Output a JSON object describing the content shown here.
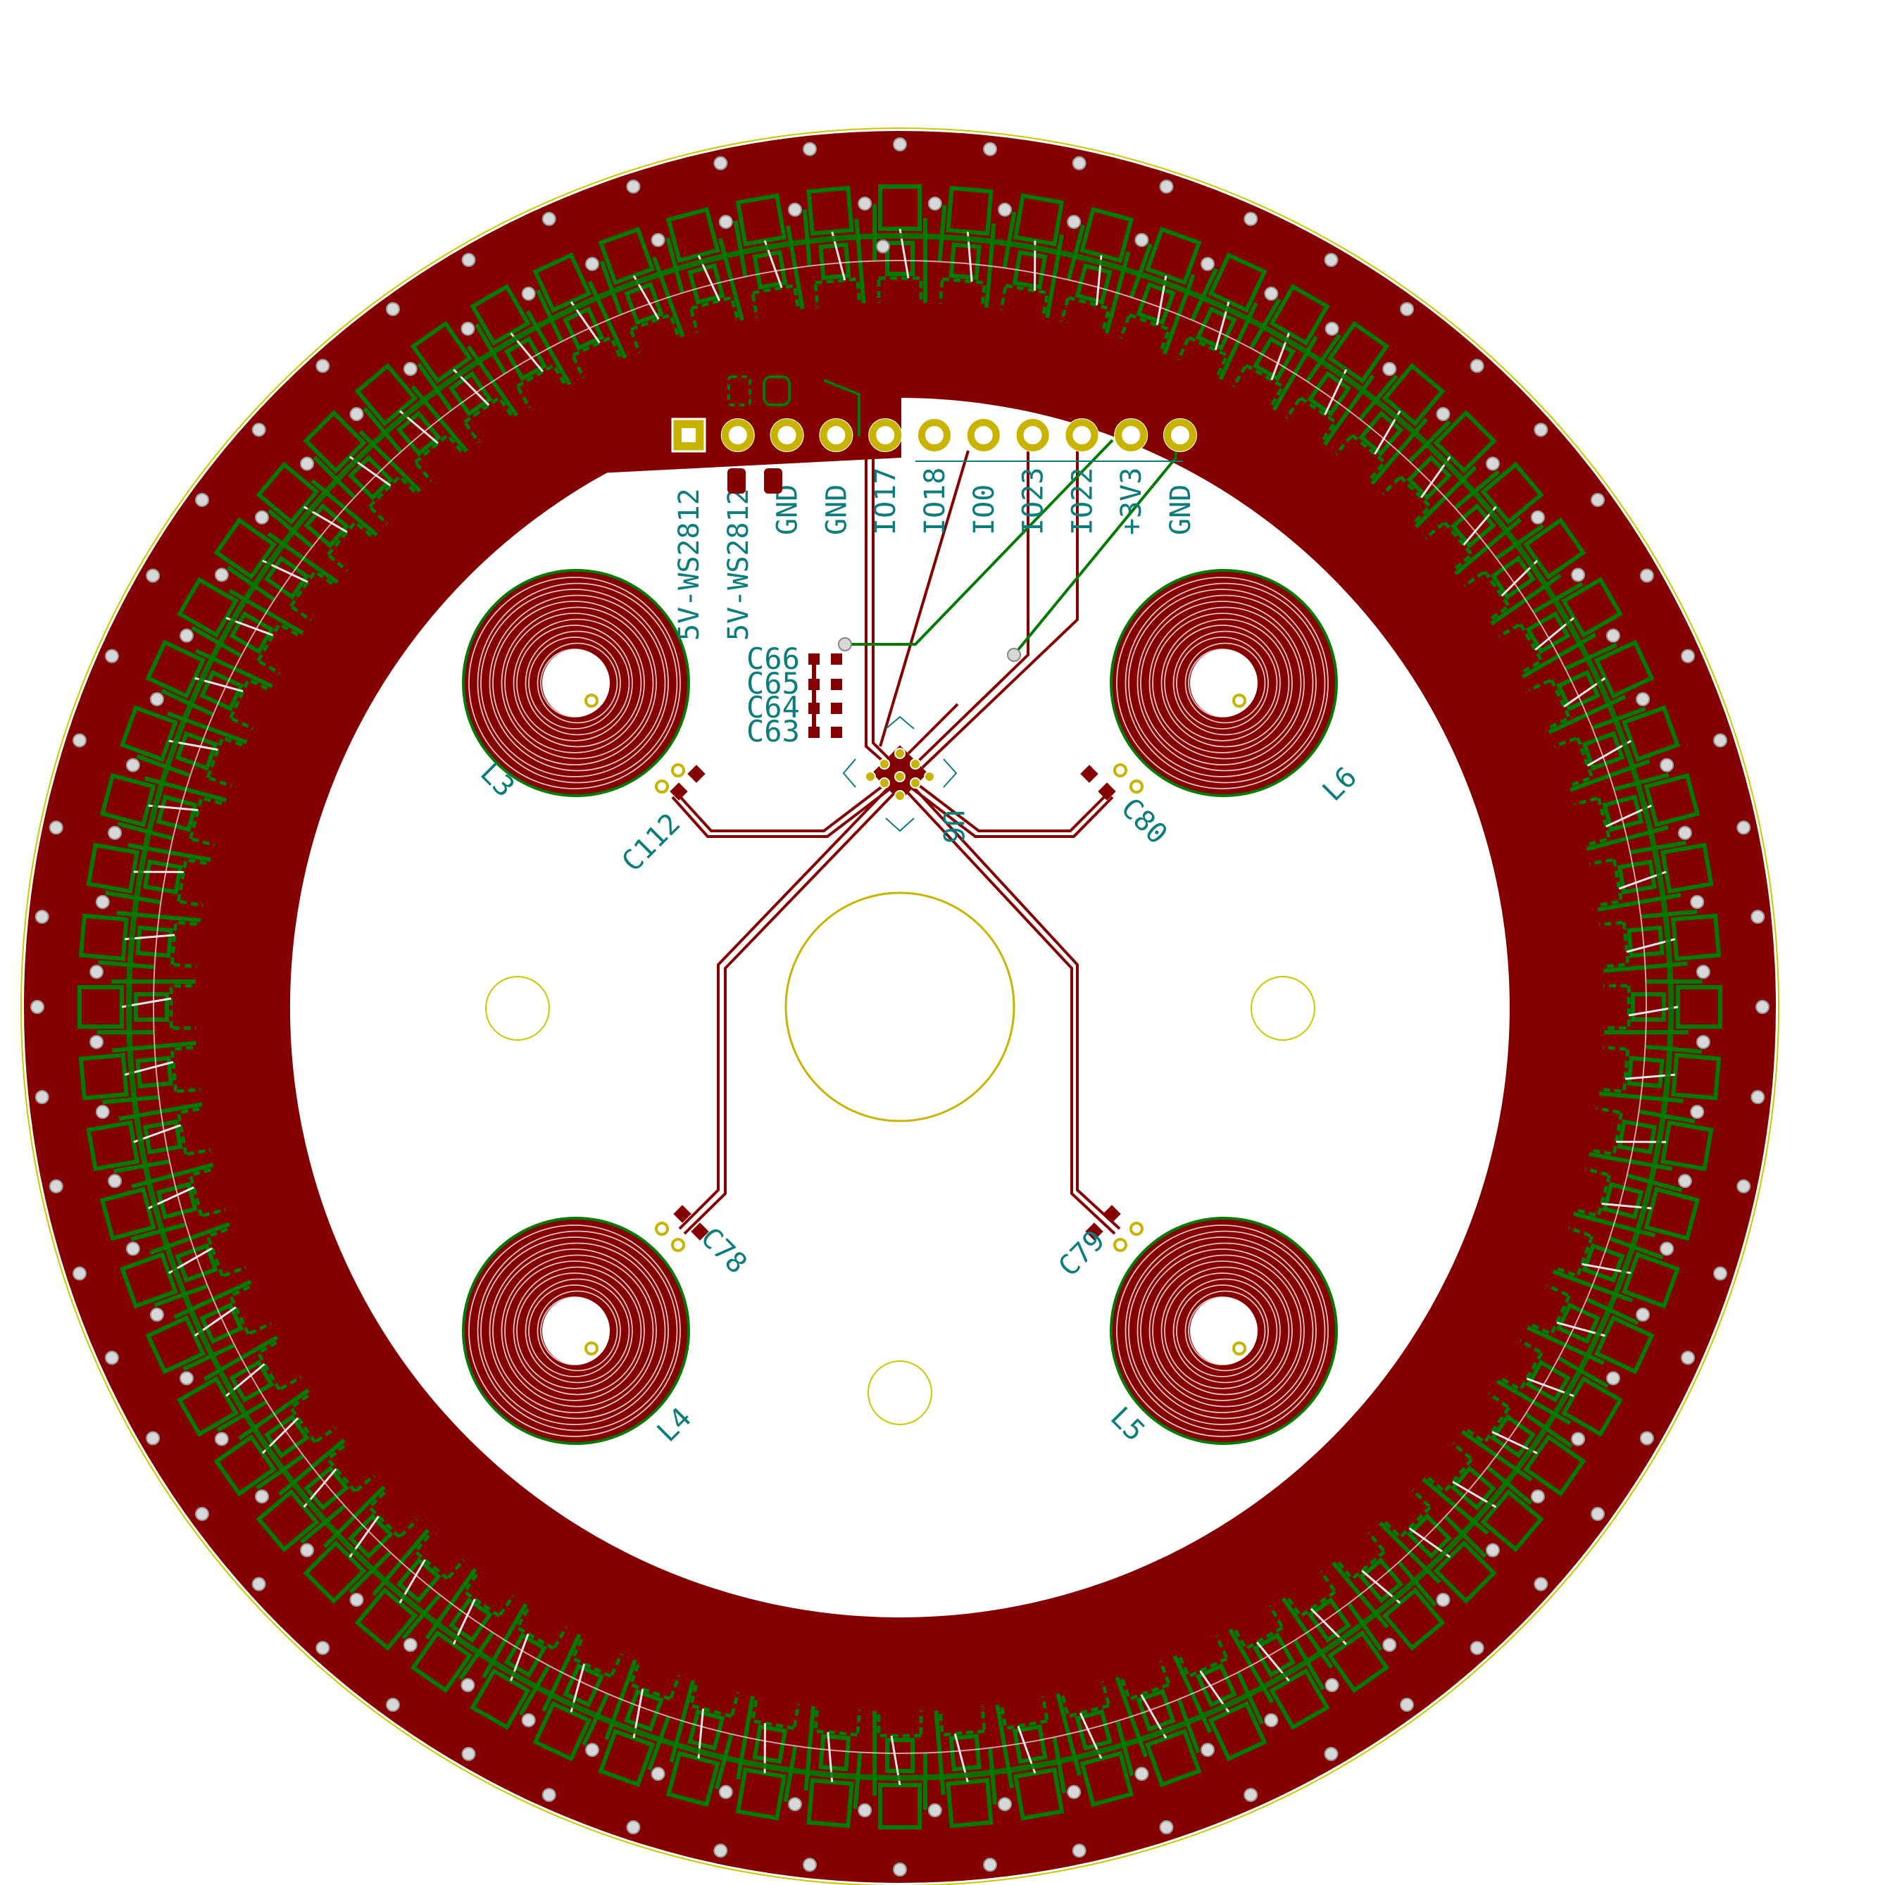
{
  "board": {
    "colors": {
      "background": "#ffffff",
      "copper_top": "#840000",
      "copper_bottom": "#007a00",
      "silkscreen": "#0a7c7c",
      "pad": "#c8b400",
      "edge": "#c8c800",
      "via": "#d8d8d8"
    }
  },
  "header": {
    "pins": [
      "5V-WS2812",
      "5V-WS2812",
      "GND",
      "GND",
      "IO17",
      "IO18",
      "IO0",
      "IO23",
      "IO22",
      "+3V3",
      "GND"
    ]
  },
  "capacitors": {
    "cap_stack": [
      "C66",
      "C65",
      "C64",
      "C63"
    ],
    "coil_caps": [
      "C112",
      "C80",
      "C78",
      "C79"
    ]
  },
  "coils": [
    "L3",
    "L6",
    "L4",
    "L5"
  ],
  "ic": {
    "ref": "U6"
  }
}
